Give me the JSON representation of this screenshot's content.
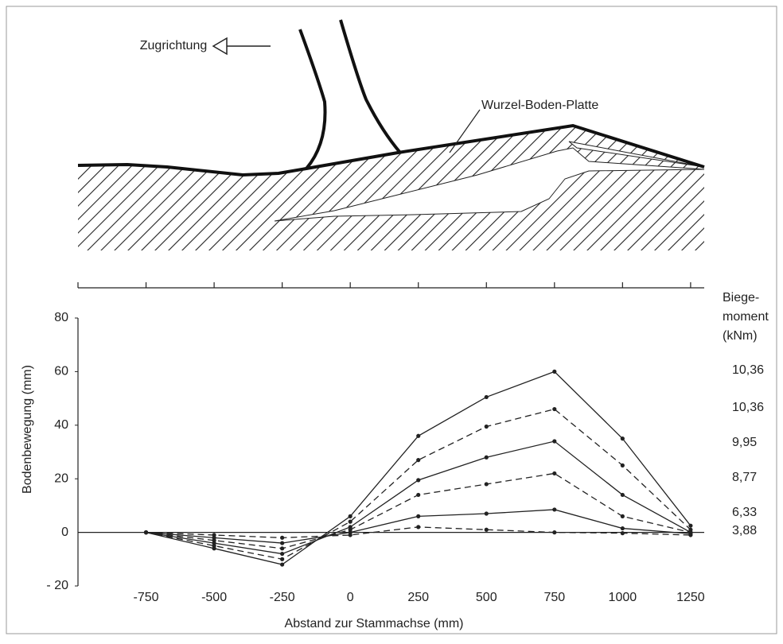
{
  "diagram": {
    "pull_direction": "Zugrichtung",
    "root_plate": "Wurzel-Boden-Platte"
  },
  "chart_data": {
    "type": "line",
    "x_label": "Abstand zur Stammachse (mm)",
    "y_label": "Bodenbewegung (mm)",
    "legend_title": [
      "Biege-",
      "moment",
      "(kNm)"
    ],
    "x": [
      -750,
      -500,
      -250,
      0,
      250,
      500,
      750,
      1000,
      1250
    ],
    "xlim": [
      -1000,
      1300
    ],
    "xticks": [
      -750,
      -500,
      -250,
      0,
      250,
      500,
      750,
      1000,
      1250
    ],
    "ylim": [
      -20,
      80
    ],
    "yticks": [
      {
        "value": -20,
        "label": "- 20"
      },
      0,
      20,
      40,
      60,
      80
    ],
    "series": [
      {
        "name": "10,36",
        "color": "#222222",
        "dashed": false,
        "values": [
          0,
          -6,
          -12,
          6,
          36,
          50.5,
          60,
          35,
          2.5
        ]
      },
      {
        "name": "10,36",
        "color": "#222222",
        "dashed": true,
        "values": [
          0,
          -5,
          -10,
          4,
          27,
          39.5,
          46,
          25,
          1
        ]
      },
      {
        "name": "9,95",
        "color": "#222222",
        "dashed": false,
        "values": [
          0,
          -4,
          -8,
          2,
          19.5,
          28,
          34,
          14,
          0
        ]
      },
      {
        "name": "8,77",
        "color": "#222222",
        "dashed": true,
        "values": [
          0,
          -3,
          -6,
          1,
          14,
          18,
          22,
          6,
          0
        ]
      },
      {
        "name": "6,33",
        "color": "#222222",
        "dashed": false,
        "values": [
          0,
          -2,
          -4,
          0,
          6,
          7,
          8.5,
          1.5,
          -0.5
        ]
      },
      {
        "name": "3,88",
        "color": "#222222",
        "dashed": true,
        "values": [
          0,
          -1,
          -2,
          -1,
          2,
          1,
          0,
          -0.3,
          -1
        ]
      }
    ]
  }
}
